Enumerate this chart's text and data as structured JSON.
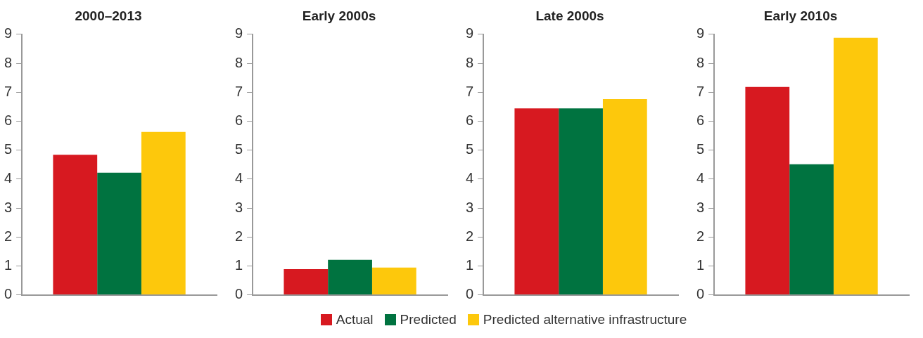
{
  "chart_data": [
    {
      "type": "bar",
      "title": "2000–2013",
      "categories": [
        null
      ],
      "ylim": [
        0,
        9
      ],
      "yticks": [
        0,
        1,
        2,
        3,
        4,
        5,
        6,
        7,
        8,
        9
      ],
      "grid": false,
      "legend": "bottom",
      "series": [
        {
          "name": "Actual",
          "color": "#d71920",
          "values": [
            4.84
          ]
        },
        {
          "name": "Predicted",
          "color": "#007340",
          "values": [
            4.22
          ]
        },
        {
          "name": "Predicted alternative infrastructure",
          "color": "#fdc80c",
          "values": [
            5.63
          ]
        }
      ]
    },
    {
      "type": "bar",
      "title": "Early 2000s",
      "categories": [
        null
      ],
      "ylim": [
        0,
        9
      ],
      "yticks": [
        0,
        1,
        2,
        3,
        4,
        5,
        6,
        7,
        8,
        9
      ],
      "grid": false,
      "series": [
        {
          "color": "#d71920",
          "values": [
            0.89
          ]
        },
        {
          "color": "#007340",
          "values": [
            1.21
          ]
        },
        {
          "color": "#fdc80c",
          "values": [
            0.94
          ]
        }
      ]
    },
    {
      "type": "bar",
      "title": "Late 2000s",
      "categories": [
        null
      ],
      "ylim": [
        0,
        9
      ],
      "yticks": [
        0,
        1,
        2,
        3,
        4,
        5,
        6,
        7,
        8,
        9
      ],
      "grid": false,
      "series": [
        {
          "color": "#d71920",
          "values": [
            6.44
          ]
        },
        {
          "color": "#007340",
          "values": [
            6.44
          ]
        },
        {
          "color": "#fdc80c",
          "values": [
            6.76
          ]
        }
      ]
    },
    {
      "type": "bar",
      "title": "Early 2010s",
      "categories": [
        null
      ],
      "ylim": [
        0,
        9
      ],
      "yticks": [
        0,
        1,
        2,
        3,
        4,
        5,
        6,
        7,
        8,
        9
      ],
      "grid": false,
      "series": [
        {
          "color": "#d71920",
          "values": [
            7.18
          ]
        },
        {
          "color": "#007340",
          "values": [
            4.51
          ]
        },
        {
          "color": "#fdc80c",
          "values": [
            8.88
          ]
        }
      ]
    }
  ]
}
